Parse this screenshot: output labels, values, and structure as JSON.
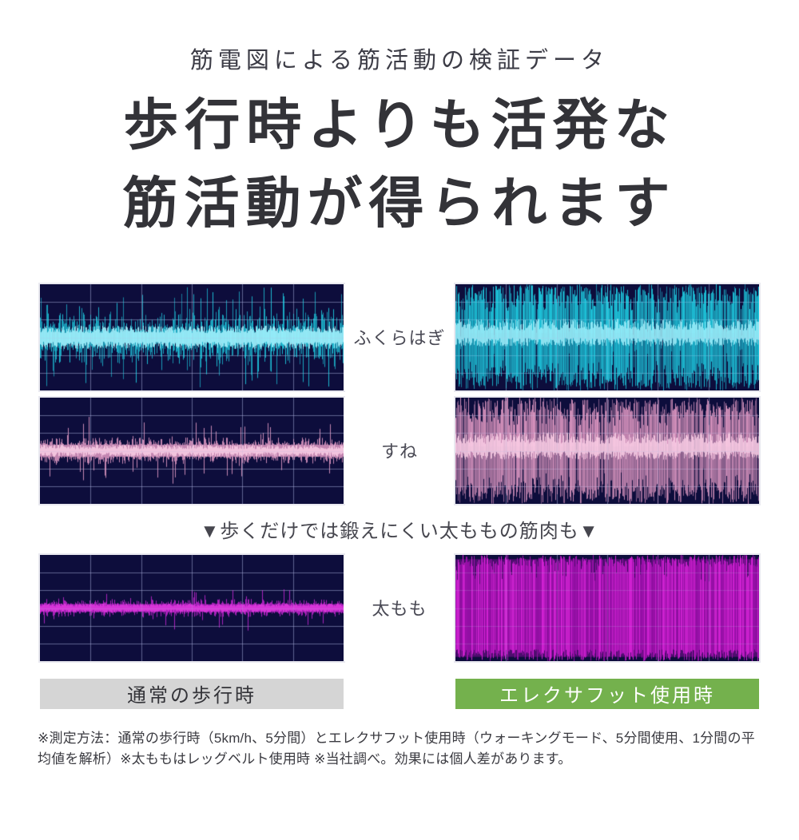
{
  "header": {
    "subtitle": "筋電図による筋活動の検証データ",
    "title_line1": "歩行時よりも活発な",
    "title_line2": "筋活動が得られます"
  },
  "comparison": {
    "row_labels": {
      "calf": "ふくらはぎ",
      "shin": "すね",
      "thigh": "太もも"
    },
    "divider_note": "▼歩くだけでは鍛えにくい太ももの筋肉も▼",
    "left_caption": "通常の歩行時",
    "right_caption": "エレクサフット使用時",
    "colors": {
      "left_caption_bg": "#d5d5d5",
      "left_caption_text": "#333338",
      "right_caption_bg": "#74b14d",
      "right_caption_text": "#ffffff",
      "panel_bg": "#0d0d3c",
      "grid_line": "#aab2dd",
      "cyan_wave": "#1fd2e6",
      "cyan_bright": "#a8f4ff",
      "pink_wave": "#e49cc6",
      "pink_bright": "#ffd3ea",
      "magenta_wave": "#b517c2",
      "magenta_bright": "#e33be0"
    }
  },
  "chart_data": [
    {
      "id": "calf-walking",
      "type": "area",
      "muscle": "ふくらはぎ",
      "condition": "通常の歩行時",
      "description": "EMG waveform: rhythmic moderate bursts around baseline",
      "color": "#1fd2e6",
      "bright": "#a8f4ff",
      "mode": "burst",
      "relative_amplitude": 0.55,
      "seed": 11,
      "params": {
        "base": 0.1,
        "peak": 0.85
      }
    },
    {
      "id": "calf-device",
      "type": "area",
      "muscle": "ふくらはぎ",
      "condition": "エレクサフット使用時",
      "description": "EMG waveform: dense near full-scale activity",
      "color": "#1fd2e6",
      "bright": "#a8f4ff",
      "mode": "dense",
      "relative_amplitude": 1.0,
      "seed": 22,
      "params": {
        "base": 0.42,
        "peak": 1.0
      }
    },
    {
      "id": "shin-walking",
      "type": "area",
      "muscle": "すね",
      "condition": "通常の歩行時",
      "description": "EMG waveform: low amplitude noise with small spikes",
      "color": "#e49cc6",
      "bright": "#ffd3ea",
      "mode": "flat",
      "relative_amplitude": 0.3,
      "seed": 33,
      "params": {
        "base": 0.11,
        "jit": 0.14,
        "spike": 0.42,
        "prob": 0.07
      }
    },
    {
      "id": "shin-device",
      "type": "area",
      "muscle": "すね",
      "condition": "エレクサフット使用時",
      "description": "EMG waveform: dense near full-scale activity",
      "color": "#e49cc6",
      "bright": "#ffd3ea",
      "mode": "dense",
      "relative_amplitude": 0.95,
      "seed": 44,
      "params": {
        "base": 0.4,
        "peak": 1.0
      }
    },
    {
      "id": "thigh-walking",
      "type": "area",
      "muscle": "太もも",
      "condition": "通常の歩行時",
      "description": "EMG waveform: very low flat baseline activity",
      "color": "#c226ce",
      "bright": "#e33be0",
      "mode": "flat",
      "relative_amplitude": 0.15,
      "seed": 55,
      "params": {
        "base": 0.07,
        "jit": 0.1,
        "spike": 0.3,
        "prob": 0.05
      }
    },
    {
      "id": "thigh-device",
      "type": "area",
      "muscle": "太もも",
      "condition": "エレクサフット使用時",
      "description": "EMG waveform: saturated full-scale activity filling panel",
      "color": "#9c10ab",
      "bright": "#d622d6",
      "mode": "solid",
      "relative_amplitude": 1.0,
      "seed": 66,
      "params": {
        "base": 0.78,
        "peak": 1.0
      }
    }
  ],
  "footnote": "※測定方法：通常の歩行時（5km/h、5分間）とエレクサフット使用時（ウォーキングモード、5分間使用、1分間の平均値を解析）※太ももはレッグベルト使用時 ※当社調べ。効果には個人差があります。"
}
